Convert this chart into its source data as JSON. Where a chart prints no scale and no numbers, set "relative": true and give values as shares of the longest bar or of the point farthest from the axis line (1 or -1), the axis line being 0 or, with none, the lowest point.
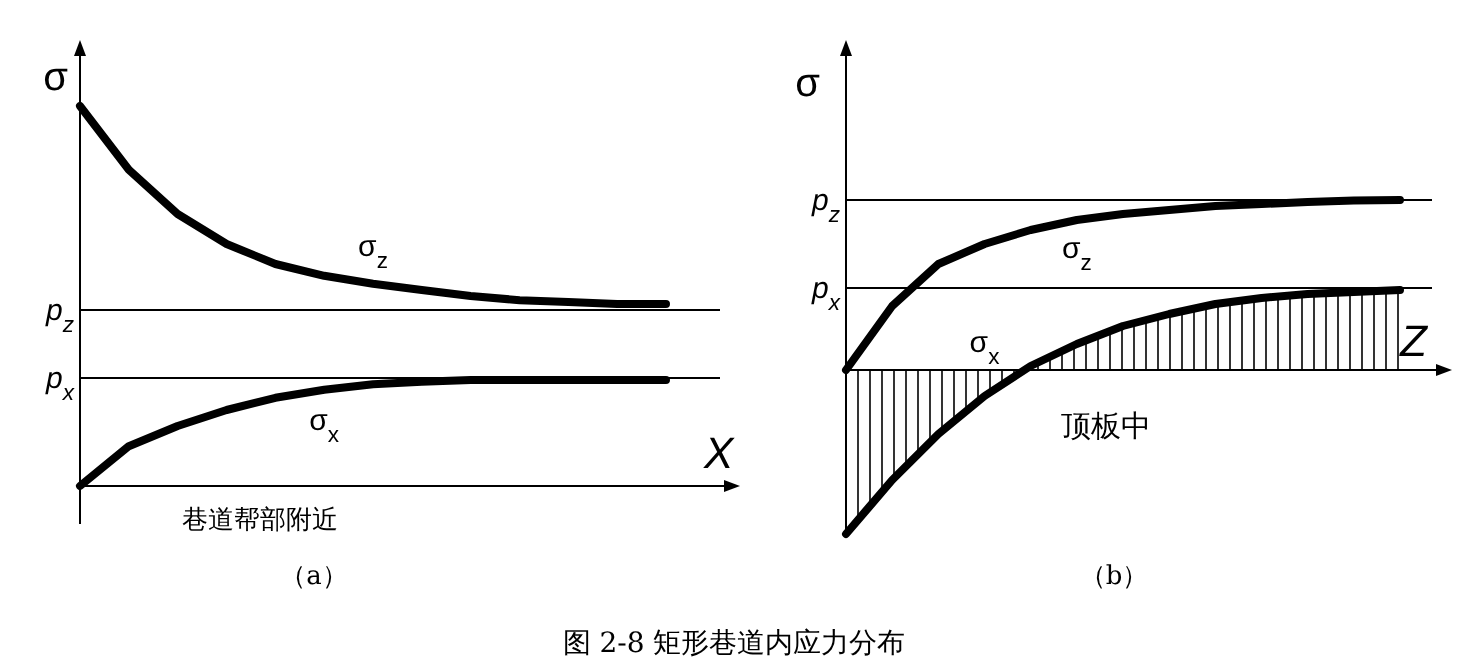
{
  "chart_data": [
    {
      "type": "line",
      "relative": true,
      "xlabel": "X",
      "ylabel": "σ",
      "categories": [
        null,
        null,
        null,
        null,
        null,
        null,
        null,
        null,
        null,
        null,
        null,
        null,
        null
      ],
      "series": [
        {
          "name": "σ$_{z}$",
          "color": "#000000",
          "values": [
            1,
            0.832,
            0.716,
            0.637,
            0.584,
            0.553,
            0.532,
            0.516,
            0.5,
            0.489,
            0.484,
            0.479,
            0.479
          ]
        },
        {
          "name": "σ$_{x}$",
          "color": "#000000",
          "values": [
            0,
            0.105,
            0.158,
            0.2,
            0.232,
            0.253,
            0.268,
            0.274,
            0.279,
            0.279,
            0.279,
            0.279,
            0.279
          ]
        }
      ],
      "ref_lines": [
        {
          "axis": "y",
          "value": 0.463,
          "label": "p$_{z}$"
        },
        {
          "axis": "y",
          "value": 0.284,
          "label": "p$_{x}$"
        }
      ],
      "annotations": [
        "巷道帮部附近",
        "（a）",
        "图 2-8  矩形巷道内应力分布"
      ]
    },
    {
      "type": "line",
      "relative": true,
      "xlabel": "Z",
      "ylabel": "σ",
      "categories": [
        null,
        null,
        null,
        null,
        null,
        null,
        null,
        null,
        null,
        null,
        null,
        null,
        null
      ],
      "series": [
        {
          "name": "σ$_{z}$",
          "color": "#000000",
          "values": [
            0,
            0.376,
            0.624,
            0.741,
            0.824,
            0.882,
            0.918,
            0.941,
            0.965,
            0.976,
            0.988,
            0.996,
            1
          ]
        },
        {
          "name": "σ$_{x}$",
          "type": "area",
          "color": "#000000",
          "values": [
            -0.965,
            -0.647,
            -0.376,
            -0.153,
            0.024,
            0.153,
            0.259,
            0.329,
            0.388,
            0.424,
            0.447,
            0.459,
            0.471
          ]
        }
      ],
      "ref_lines": [
        {
          "axis": "y",
          "value": 1,
          "label": "p$_{z}$"
        },
        {
          "axis": "y",
          "value": 0.482,
          "label": "p$_{x}$"
        }
      ],
      "annotations": [
        "顶板中",
        "（b）"
      ]
    }
  ]
}
